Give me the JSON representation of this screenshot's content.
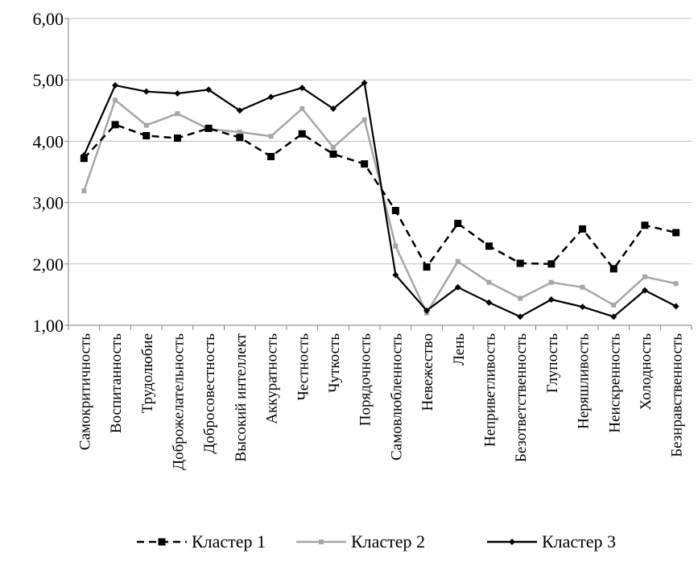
{
  "chart_data": {
    "type": "line",
    "title": "",
    "xlabel": "",
    "ylabel": "",
    "ylim": [
      1,
      6
    ],
    "yticks": [
      "1,00",
      "2,00",
      "3,00",
      "4,00",
      "5,00",
      "6,00"
    ],
    "grid": "horizontal",
    "legend_position": "bottom",
    "categories": [
      "Самокритичность",
      "Воспитанность",
      "Трудолюбие",
      "Доброжелательность",
      "Добросовестность",
      "Высокий интеллект",
      "Аккуратность",
      "Честность",
      "Чуткость",
      "Порядочность",
      "Самовлюбленность",
      "Невежество",
      "Лень",
      "Неприветливость",
      "Безответственность",
      "Глупость",
      "Неряшливость",
      "Неискренность",
      "Холодность",
      "Безнравственность"
    ],
    "series": [
      {
        "name": "Кластер 1",
        "color": "#000000",
        "style": "dashed",
        "marker": "square",
        "values": [
          3.72,
          4.27,
          4.09,
          4.05,
          4.21,
          4.06,
          3.75,
          4.12,
          3.79,
          3.63,
          2.87,
          1.95,
          2.66,
          2.29,
          2.01,
          2.0,
          2.57,
          1.92,
          2.63,
          2.51
        ]
      },
      {
        "name": "Кластер 2",
        "color": "#a6a6a6",
        "style": "solid",
        "marker": "small-square",
        "values": [
          3.19,
          4.67,
          4.26,
          4.45,
          4.2,
          4.15,
          4.08,
          4.53,
          3.9,
          4.35,
          2.29,
          1.2,
          2.04,
          1.7,
          1.44,
          1.7,
          1.62,
          1.33,
          1.79,
          1.68
        ]
      },
      {
        "name": "Кластер 3",
        "color": "#000000",
        "style": "solid",
        "marker": "diamond",
        "values": [
          3.77,
          4.91,
          4.81,
          4.78,
          4.84,
          4.5,
          4.72,
          4.87,
          4.53,
          4.95,
          1.82,
          1.24,
          1.62,
          1.37,
          1.14,
          1.42,
          1.3,
          1.14,
          1.57,
          1.31
        ]
      }
    ]
  }
}
